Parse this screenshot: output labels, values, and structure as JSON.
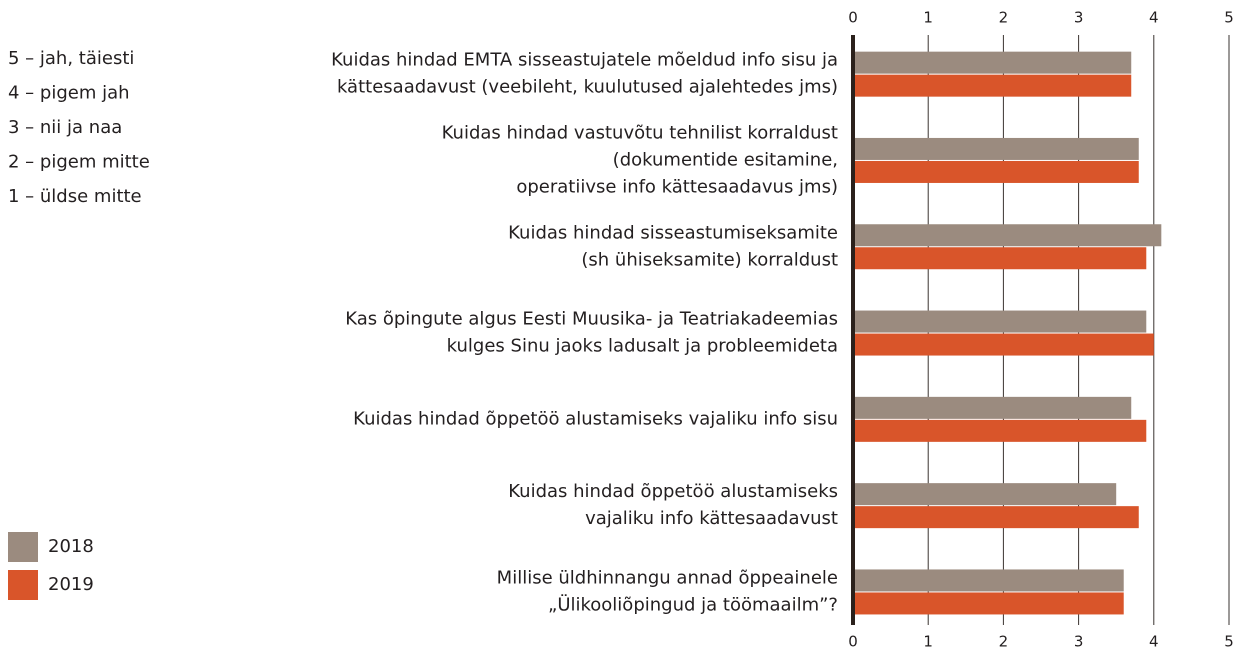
{
  "chart_data": {
    "type": "bar",
    "orientation": "horizontal",
    "scale_labels": [
      "5 – jah, täiesti",
      "4 – pigem jah",
      "3 – nii ja naa",
      "2 – pigem mitte",
      "1 – üldse mitte"
    ],
    "categories": [
      [
        "Kuidas hindad EMTA sisseastujatele mõeldud info sisu ja",
        "kättesaadavust (veebileht, kuulutused ajalehtedes jms)"
      ],
      [
        "Kuidas hindad vastuvõtu tehnilist korraldust",
        "(dokumentide esitamine,",
        "operatiivse info kättesaadavus jms)"
      ],
      [
        "Kuidas hindad sisseastumiseksamite",
        "(sh ühiseksamite) korraldust"
      ],
      [
        "Kas õpingute algus Eesti Muusika- ja Teatriakadeemias",
        "kulges Sinu jaoks ladusalt ja probleemideta"
      ],
      [
        "Kuidas hindad õppetöö alustamiseks vajaliku info sisu"
      ],
      [
        "Kuidas hindad õppetöö alustamiseks",
        "vajaliku info kättesaadavust"
      ],
      [
        "Millise üldhinnangu annad õppeainele",
        "„Ülikooliõpingud ja töömaailm”?"
      ]
    ],
    "series": [
      {
        "name": "2018",
        "color": "#9b8b7f",
        "values": [
          3.7,
          3.8,
          4.1,
          3.9,
          3.7,
          3.5,
          3.6
        ]
      },
      {
        "name": "2019",
        "color": "#d9552a",
        "values": [
          3.7,
          3.8,
          3.9,
          4.0,
          3.9,
          3.8,
          3.6
        ]
      }
    ],
    "xlim": [
      0,
      5
    ],
    "xticks": [
      0,
      1,
      2,
      3,
      4,
      5
    ],
    "grid": true
  }
}
